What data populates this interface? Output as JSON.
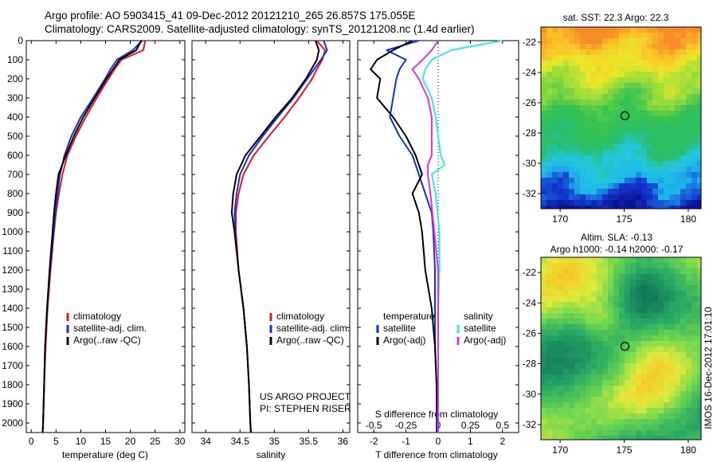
{
  "header": {
    "title_line_1": "Argo profile: AO 5903415_41 09-Dec-2012 20121210_265 26.857S 175.055E",
    "title_line_2": "Climatology: CARS2009. Satellite-adjusted climatology: synTS_20121208.nc (1.4d earlier)"
  },
  "colors": {
    "climatology": "#e8141e",
    "satellite_adj": "#1030d8",
    "argo": "#000000",
    "salinity_satellite": "#33e8ee",
    "salinity_argo": "#e030e0"
  },
  "panels": {
    "depth_ticks": [
      "0",
      "100",
      "200",
      "300",
      "400",
      "500",
      "600",
      "700",
      "800",
      "900",
      "1000",
      "1100",
      "1200",
      "1300",
      "1400",
      "1500",
      "1600",
      "1700",
      "1800",
      "1900",
      "2000"
    ],
    "temperature": {
      "xlabel": "temperature (deg C)",
      "xticks": [
        "0",
        "5",
        "10",
        "15",
        "20",
        "25",
        "30"
      ],
      "legend": [
        "climatology",
        "satellite-adj. clim.",
        "Argo(..raw -QC)"
      ]
    },
    "salinity": {
      "xlabel": "salinity",
      "xticks": [
        "34",
        "34.5",
        "35",
        "35.5",
        "36"
      ],
      "legend": [
        "climatology",
        "satellite-adj. clim.",
        "Argo(..raw -QC)"
      ],
      "credit_1": "US ARGO PROJECT",
      "credit_2": "PI: STEPHEN RISER"
    },
    "difference": {
      "xlabel": "T difference from climatology",
      "top_label": "S difference from climatology",
      "t_xticks": [
        "-2",
        "-1",
        "0",
        "1",
        "2"
      ],
      "s_xticks": [
        "-0.5",
        "-0.25",
        "0",
        "0.25",
        "0.5"
      ],
      "legend_temperature_title": "temperature",
      "legend_salinity_title": "salinity",
      "legend_satellite": "satellite",
      "legend_argo": "Argo(-adj)"
    },
    "sst_map": {
      "title": "sat. SST: 22.3  Argo: 22.3",
      "yticks": [
        "-22",
        "-24",
        "-26",
        "-28",
        "-30",
        "-32"
      ],
      "xticks": [
        "170",
        "175",
        "180"
      ]
    },
    "sla_map": {
      "title_1": "Altim. SLA: -0.13",
      "title_2": "Argo h1000: -0.14  h2000: -0.17",
      "yticks": [
        "-22",
        "-24",
        "-26",
        "-28",
        "-30",
        "-32"
      ],
      "xticks": [
        "170",
        "175",
        "180"
      ]
    },
    "side_stamp": "IMOS 16-Dec-2012 17:01:10"
  },
  "chart_data": [
    {
      "type": "line",
      "title": "",
      "xlabel": "temperature (deg C)",
      "ylabel": "",
      "xlim": [
        -1,
        31
      ],
      "ylim": [
        2050,
        0
      ],
      "depth": [
        0,
        50,
        100,
        150,
        200,
        300,
        400,
        500,
        600,
        700,
        800,
        900,
        1000,
        1200,
        1400,
        1600,
        1800,
        2000,
        2050
      ],
      "series": [
        {
          "name": "climatology",
          "values": [
            23.0,
            22.6,
            18.2,
            16.8,
            15.6,
            13.2,
            11.0,
            9.0,
            7.3,
            6.3,
            5.6,
            5.0,
            4.6,
            3.9,
            3.3,
            2.9,
            2.6,
            2.4,
            2.3
          ]
        },
        {
          "name": "satellite-adj. clim.",
          "values": [
            22.4,
            20.5,
            17.3,
            16.0,
            14.9,
            12.5,
            10.0,
            8.1,
            6.7,
            5.8,
            5.3,
            4.9,
            4.5,
            3.8,
            3.2,
            2.8,
            2.6,
            2.4,
            2.3
          ]
        },
        {
          "name": "Argo(..raw -QC)",
          "values": [
            22.2,
            21.2,
            17.8,
            16.5,
            15.2,
            12.8,
            10.5,
            8.6,
            7.0,
            5.5,
            5.0,
            4.6,
            4.3,
            3.7,
            3.2,
            2.8,
            2.6,
            2.4,
            2.3
          ]
        }
      ]
    },
    {
      "type": "line",
      "title": "",
      "xlabel": "salinity",
      "ylabel": "",
      "xlim": [
        33.8,
        36.1
      ],
      "ylim": [
        2050,
        0
      ],
      "depth": [
        0,
        50,
        100,
        150,
        200,
        300,
        400,
        500,
        600,
        700,
        800,
        900,
        1000,
        1200,
        1400,
        1600,
        1800,
        2000,
        2050
      ],
      "series": [
        {
          "name": "climatology",
          "values": [
            35.62,
            35.74,
            35.7,
            35.62,
            35.55,
            35.36,
            35.15,
            34.92,
            34.7,
            34.55,
            34.48,
            34.44,
            34.44,
            34.48,
            34.55,
            34.6,
            34.63,
            34.65,
            34.66
          ]
        },
        {
          "name": "satellite-adj. clim.",
          "values": [
            35.72,
            35.77,
            35.68,
            35.58,
            35.48,
            35.28,
            35.05,
            34.83,
            34.63,
            34.5,
            34.45,
            34.42,
            34.43,
            34.48,
            34.55,
            34.6,
            34.63,
            34.65,
            34.66
          ]
        },
        {
          "name": "Argo(..raw -QC)",
          "values": [
            35.6,
            35.65,
            35.62,
            35.54,
            35.46,
            35.26,
            35.02,
            34.8,
            34.58,
            34.45,
            34.4,
            34.38,
            34.42,
            34.48,
            34.55,
            34.6,
            34.63,
            34.65,
            34.66
          ]
        }
      ]
    },
    {
      "type": "line",
      "title": "",
      "xlabel": "T difference from climatology",
      "ylabel": "",
      "xlim": [
        -2.5,
        2.5
      ],
      "ylim": [
        2050,
        0
      ],
      "temperature_depth": [
        0,
        50,
        100,
        150,
        200,
        300,
        400,
        500,
        600,
        700,
        800,
        900,
        1000,
        1200,
        1400,
        1600,
        1800,
        2000,
        2050
      ],
      "salinity_depth": [
        0,
        50,
        100,
        150,
        200,
        300,
        400,
        500,
        600,
        650,
        700,
        800,
        1000,
        1200,
        1400,
        1600,
        1800,
        2000,
        2050
      ],
      "series": [
        {
          "name": "satellite",
          "group": "temperature",
          "axis": "T",
          "values": [
            -0.6,
            -1.6,
            -1.0,
            -1.2,
            -1.3,
            -1.4,
            -1.5,
            -1.2,
            -0.8,
            -0.6,
            -0.4,
            -0.2,
            -0.15,
            -0.1,
            -0.1,
            -0.1,
            -0.05,
            -0.05,
            -0.05
          ]
        },
        {
          "name": "Argo(-adj)",
          "group": "temperature",
          "axis": "T",
          "values": [
            -0.8,
            -1.4,
            -1.9,
            -2.1,
            -1.8,
            -1.9,
            -1.4,
            -1.0,
            -0.7,
            -0.5,
            -0.8,
            -0.6,
            -0.5,
            -0.4,
            -0.2,
            -0.1,
            -0.05,
            0.0,
            0.0
          ]
        },
        {
          "name": "satellite",
          "group": "salinity",
          "axis": "S",
          "values": [
            0.5,
            0.1,
            -0.05,
            -0.1,
            -0.12,
            -0.05,
            -0.02,
            0.0,
            0.02,
            0.05,
            -0.05,
            -0.02,
            0.01,
            0.01,
            0.0,
            0.0,
            0.0,
            0.0,
            0.0
          ]
        },
        {
          "name": "Argo(-adj)",
          "group": "salinity",
          "axis": "S",
          "values": [
            0.0,
            -0.05,
            -0.12,
            -0.2,
            -0.15,
            -0.08,
            -0.05,
            -0.05,
            -0.05,
            -0.08,
            -0.08,
            -0.06,
            -0.03,
            0.0,
            0.0,
            0.0,
            0.0,
            0.0,
            0.0
          ]
        }
      ]
    },
    {
      "type": "heatmap",
      "title": "sat. SST: 22.3  Argo: 22.3",
      "xlim": [
        168.5,
        181
      ],
      "ylim": [
        -33,
        -21
      ],
      "xticks": [
        170,
        175,
        180
      ],
      "yticks": [
        -22,
        -24,
        -26,
        -28,
        -30,
        -32
      ],
      "marker": {
        "lon": 175.055,
        "lat": -26.857
      }
    },
    {
      "type": "heatmap",
      "title": "Altim. SLA: -0.13",
      "subtitle": "Argo h1000: -0.14  h2000: -0.17",
      "xlim": [
        168.5,
        181
      ],
      "ylim": [
        -33,
        -21
      ],
      "xticks": [
        170,
        175,
        180
      ],
      "yticks": [
        -22,
        -24,
        -26,
        -28,
        -30,
        -32
      ],
      "marker": {
        "lon": 175.055,
        "lat": -26.857
      }
    }
  ]
}
